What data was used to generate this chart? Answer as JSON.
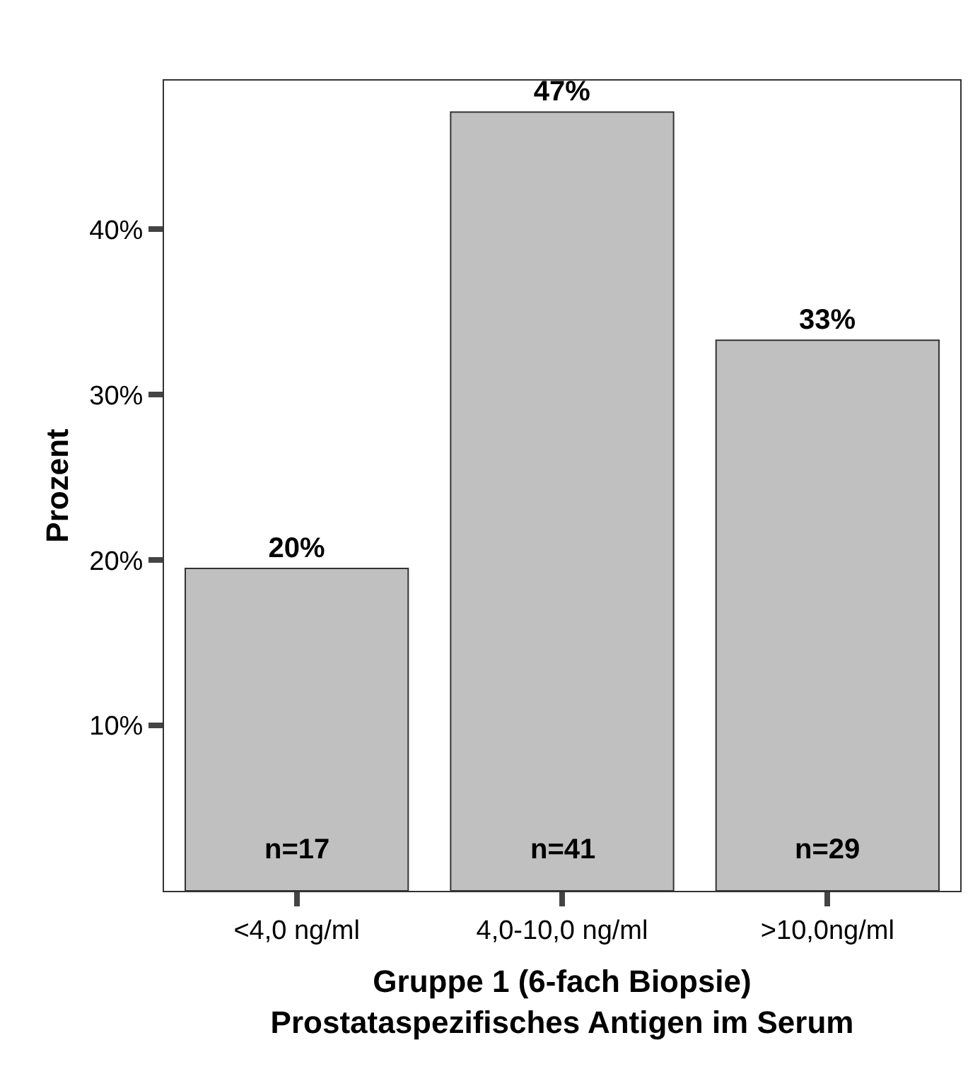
{
  "chart_data": {
    "type": "bar",
    "xlabel": "Gruppe 1 (6-fach Biopsie)\nProstataspezifisches Antigen im Serum",
    "ylabel": "Prozent",
    "categories": [
      "<4,0 ng/ml",
      "4,0-10,0 ng/ml",
      ">10,0ng/ml"
    ],
    "values": [
      19.5,
      47.1,
      33.3
    ],
    "value_labels": [
      "20%",
      "47%",
      "33%"
    ],
    "color": "#c0c0c0",
    "ylim": [
      0,
      49
    ],
    "yticks": [
      {
        "value": 10,
        "label": "10%"
      },
      {
        "value": 20,
        "label": "20%"
      },
      {
        "value": 30,
        "label": "30%"
      },
      {
        "value": 40,
        "label": "40%"
      }
    ],
    "annotations": [
      "n=17",
      "n=41",
      "n=29"
    ],
    "grid": false,
    "legend": false
  }
}
